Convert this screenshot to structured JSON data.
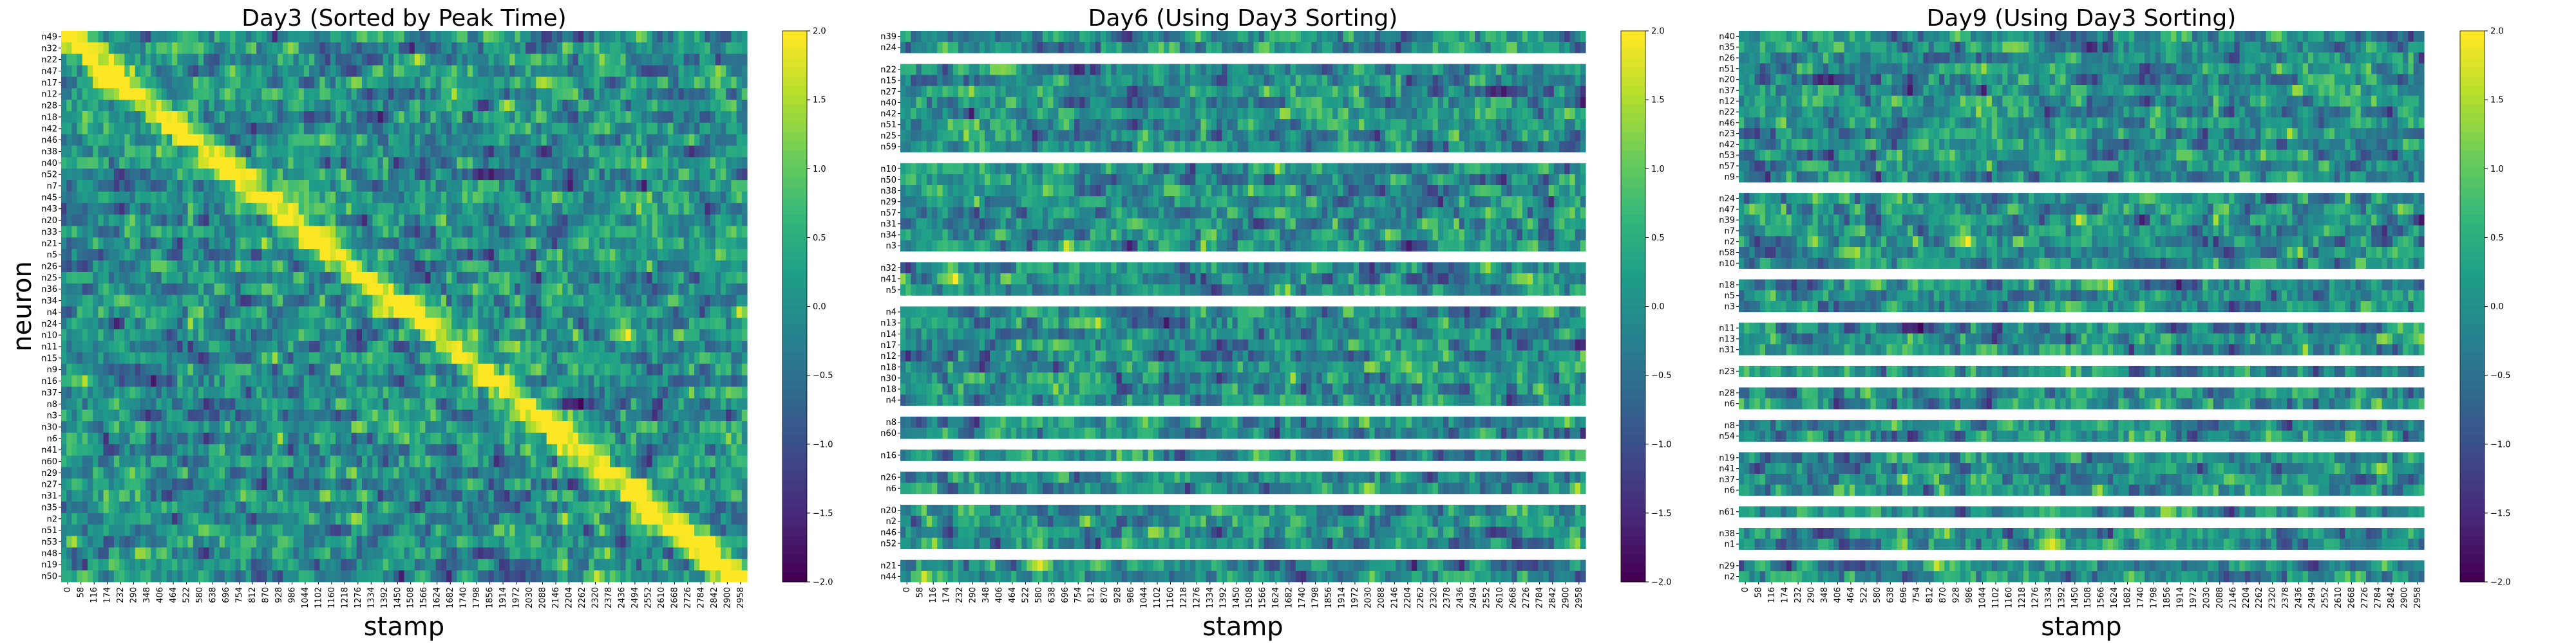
{
  "chart_data": [
    {
      "type": "heatmap",
      "title": "Day3 (Sorted by Peak Time)",
      "xlabel": "stamp",
      "ylabel": "neuron",
      "colormap": "viridis",
      "vmin": -2.0,
      "vmax": 2.0,
      "colorbar_ticks": [
        "2.0",
        "1.5",
        "1.0",
        "0.5",
        "0.0",
        "−0.5",
        "−1.0",
        "−1.5",
        "−2.0"
      ],
      "x_ticks": [
        "0",
        "58",
        "116",
        "174",
        "232",
        "290",
        "348",
        "406",
        "464",
        "522",
        "580",
        "638",
        "696",
        "754",
        "812",
        "870",
        "928",
        "986",
        "1044",
        "1102",
        "1160",
        "1218",
        "1276",
        "1334",
        "1392",
        "1450",
        "1508",
        "1566",
        "1624",
        "1682",
        "1740",
        "1798",
        "1856",
        "1914",
        "1972",
        "2030",
        "2088",
        "2146",
        "2204",
        "2262",
        "2320",
        "2378",
        "2436",
        "2494",
        "2552",
        "2610",
        "2668",
        "2726",
        "2784",
        "2842",
        "2900",
        "2958"
      ],
      "rows": [
        "n49",
        "n32",
        "n22",
        "n47",
        "n17",
        "n12",
        "n28",
        "n18",
        "n42",
        "n46",
        "n38",
        "n40",
        "n52",
        "n7",
        "n45",
        "n43",
        "n20",
        "n33",
        "n21",
        "n5",
        "n26",
        "n25",
        "n36",
        "n34",
        "n4",
        "n24",
        "n10",
        "n11",
        "n15",
        "n9",
        "n16",
        "n37",
        "n8",
        "n3",
        "n30",
        "n6",
        "n41",
        "n60",
        "n29",
        "n27",
        "n31",
        "n35",
        "n2",
        "n51",
        "n53",
        "n48",
        "n19",
        "n50"
      ]
    },
    {
      "type": "heatmap",
      "title": "Day6 (Using Day3 Sorting)",
      "xlabel": "stamp",
      "ylabel": "",
      "colormap": "viridis",
      "vmin": -2.0,
      "vmax": 2.0,
      "colorbar_ticks": [
        "2.0",
        "1.5",
        "1.0",
        "0.5",
        "0.0",
        "−0.5",
        "−1.0",
        "−1.5",
        "−2.0"
      ],
      "x_ticks": [
        "0",
        "58",
        "116",
        "174",
        "232",
        "290",
        "348",
        "406",
        "464",
        "522",
        "580",
        "638",
        "696",
        "754",
        "812",
        "870",
        "928",
        "986",
        "1044",
        "1102",
        "1160",
        "1218",
        "1276",
        "1334",
        "1392",
        "1450",
        "1508",
        "1566",
        "1624",
        "1682",
        "1740",
        "1798",
        "1856",
        "1914",
        "1972",
        "2030",
        "2088",
        "2146",
        "2204",
        "2262",
        "2320",
        "2378",
        "2436",
        "2494",
        "2552",
        "2610",
        "2668",
        "2726",
        "2784",
        "2842",
        "2900",
        "2958"
      ],
      "row_groups": [
        [
          "n39",
          "n24"
        ],
        [
          "n22",
          "n15",
          "n27",
          "n40",
          "n42",
          "n51",
          "n25",
          "n59"
        ],
        [
          "n10",
          "n50",
          "n38",
          "n29",
          "n57",
          "n31",
          "n34",
          "n3"
        ],
        [
          "n32",
          "n41",
          "n5"
        ],
        [
          "n4",
          "n13",
          "n14",
          "n17",
          "n12",
          "n18",
          "n30",
          "n18",
          "n4"
        ],
        [
          "n8",
          "n60"
        ],
        [
          "n16"
        ],
        [
          "n26",
          "n6"
        ],
        [
          "n20",
          "n2",
          "n46",
          "n52"
        ],
        [
          "n21",
          "n44"
        ]
      ]
    },
    {
      "type": "heatmap",
      "title": "Day9 (Using Day3 Sorting)",
      "xlabel": "stamp",
      "ylabel": "",
      "colormap": "viridis",
      "vmin": -2.0,
      "vmax": 2.0,
      "colorbar_ticks": [
        "2.0",
        "1.5",
        "1.0",
        "0.5",
        "0.0",
        "−0.5",
        "−1.0",
        "−1.5",
        "−2.0"
      ],
      "x_ticks": [
        "0",
        "58",
        "116",
        "174",
        "232",
        "290",
        "348",
        "406",
        "464",
        "522",
        "580",
        "638",
        "696",
        "754",
        "812",
        "870",
        "928",
        "986",
        "1044",
        "1102",
        "1160",
        "1218",
        "1276",
        "1334",
        "1392",
        "1450",
        "1508",
        "1566",
        "1624",
        "1682",
        "1740",
        "1798",
        "1856",
        "1914",
        "1972",
        "2030",
        "2088",
        "2146",
        "2204",
        "2262",
        "2320",
        "2378",
        "2436",
        "2494",
        "2552",
        "2610",
        "2668",
        "2726",
        "2784",
        "2842",
        "2900",
        "2958"
      ],
      "row_groups": [
        [
          "n40",
          "n35",
          "n26",
          "n51",
          "n20",
          "n37",
          "n12",
          "n22",
          "n46",
          "n23",
          "n42",
          "n53",
          "n57",
          "n9"
        ],
        [
          "n24",
          "n47",
          "n39",
          "n7",
          "n2",
          "n58",
          "n10"
        ],
        [
          "n18",
          "n5",
          "n3"
        ],
        [
          "n11",
          "n13",
          "n31"
        ],
        [
          "n23"
        ],
        [
          "n28",
          "n6"
        ],
        [
          "n8",
          "n54"
        ],
        [
          "n19",
          "n41",
          "n37",
          "n6"
        ],
        [
          "n61"
        ],
        [
          "n38",
          "n1"
        ],
        [
          "n29",
          "n2"
        ]
      ]
    }
  ]
}
